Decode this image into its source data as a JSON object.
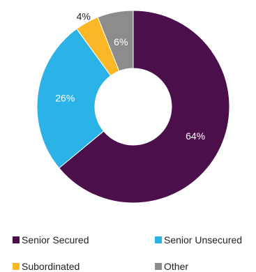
{
  "chart_data": {
    "type": "pie",
    "donut": true,
    "categories": [
      "Senior Secured",
      "Senior Unsecured",
      "Subordinated",
      "Other"
    ],
    "values": [
      64,
      26,
      4,
      6
    ],
    "data_labels": [
      "64%",
      "26%",
      "4%",
      "6%"
    ],
    "colors": [
      "#4b0f4b",
      "#2bb2e6",
      "#fbb726",
      "#8c8c8c"
    ],
    "label_colors": [
      "#ffffff",
      "#ffffff",
      "#222222",
      "#ffffff"
    ],
    "legend_position": "bottom"
  }
}
